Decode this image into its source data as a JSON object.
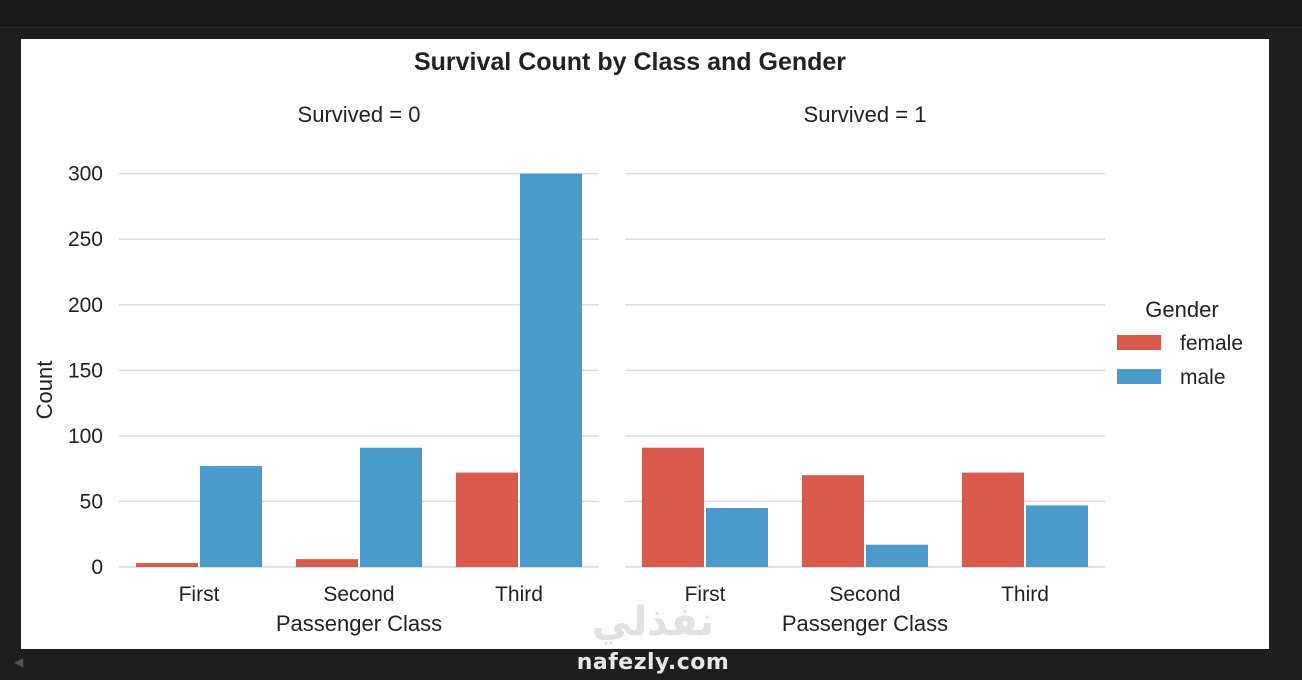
{
  "chart_data": {
    "type": "bar",
    "title": "Survival Count by Class and Gender",
    "ylabel": "Count",
    "ylim": [
      0,
      315
    ],
    "yticks": [
      0,
      50,
      100,
      150,
      200,
      250,
      300
    ],
    "grid": true,
    "legend": {
      "title": "Gender",
      "placement": "right",
      "entries": [
        "female",
        "male"
      ]
    },
    "colors": {
      "female": "#d9594c",
      "male": "#4a9acc"
    },
    "panels": [
      {
        "title": "Survived = 0",
        "xlabel": "Passenger Class",
        "categories": [
          "First",
          "Second",
          "Third"
        ],
        "series": [
          {
            "name": "female",
            "values": [
              3,
              6,
              72
            ]
          },
          {
            "name": "male",
            "values": [
              77,
              91,
              300
            ]
          }
        ]
      },
      {
        "title": "Survived = 1",
        "xlabel": "Passenger Class",
        "categories": [
          "First",
          "Second",
          "Third"
        ],
        "series": [
          {
            "name": "female",
            "values": [
              91,
              70,
              72
            ]
          },
          {
            "name": "male",
            "values": [
              45,
              17,
              47
            ]
          }
        ]
      }
    ]
  },
  "watermark": {
    "arabic": "نفذلي",
    "latin": "nafezly.com"
  },
  "ui": {
    "scroll_arrow": "◀"
  }
}
